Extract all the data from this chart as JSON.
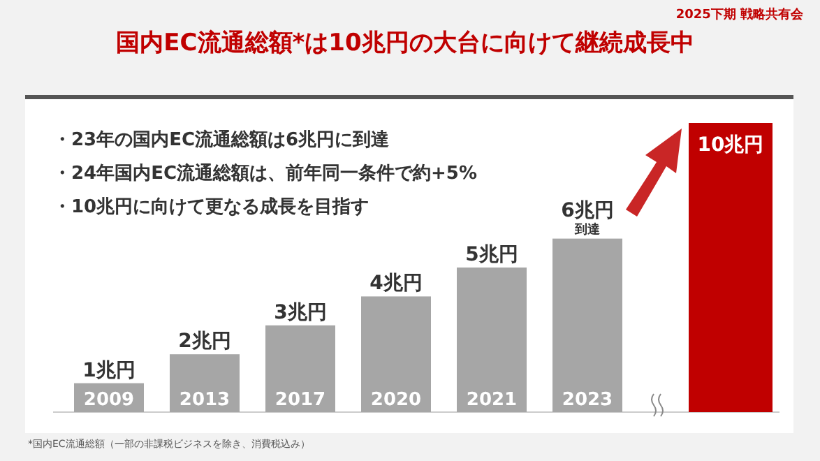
{
  "chart_data": {
    "type": "bar",
    "title": "国内EC流通総額*は10兆円の大台に向けて継続成長中",
    "subtitle": "2025下期 戦略共有会",
    "categories": [
      "2009",
      "2013",
      "2017",
      "2020",
      "2021",
      "2023",
      null
    ],
    "values": [
      1,
      2,
      3,
      4,
      5,
      6,
      10
    ],
    "colors": [
      "#a6a6a6",
      "#a6a6a6",
      "#a6a6a6",
      "#a6a6a6",
      "#a6a6a6",
      "#a6a6a6",
      "#c00000"
    ],
    "value_labels": [
      "1兆円",
      "2兆円",
      "3兆円",
      "4兆円",
      "5兆円",
      "6兆円",
      "10兆円"
    ],
    "annotations": [
      "・23年の国内EC流通総額は6兆円に到達",
      "・24年国内EC流通総額は、前年同一条件で約+5%",
      "・10兆円に向けて更なる成長を目指す",
      {
        "text": "到達",
        "x": "2023",
        "y": 6
      },
      "*国内EC流通総額（一部の非課税ビジネスを除き、消費税込み）"
    ]
  }
}
